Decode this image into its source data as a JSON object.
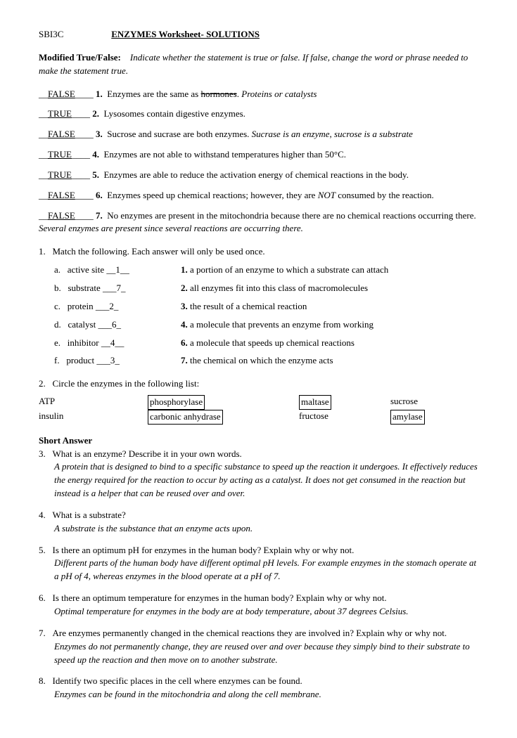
{
  "header": {
    "course": "SBI3C",
    "title": "ENZYMES Worksheet- SOLUTIONS"
  },
  "tf_section": {
    "label": "Modified True/False:",
    "instructions": "Indicate whether the statement is true or false.  If false, change the word or phrase needed to make the statement true."
  },
  "tf": [
    {
      "ans": "FALSE",
      "num": "1.",
      "text": "Enzymes are the same as ",
      "struck": "hormones",
      "after": ".  ",
      "ital": "Proteins or catalysts"
    },
    {
      "ans": "TRUE",
      "num": "2.",
      "text": "Lysosomes contain digestive enzymes."
    },
    {
      "ans": "FALSE",
      "num": "3.",
      "text": "Sucrose and sucrase are both enzymes. ",
      "ital": "Sucrase is an enzyme, sucrose is a substrate"
    },
    {
      "ans": "TRUE",
      "num": "4.",
      "text": "Enzymes are not able to withstand temperatures higher than 50°C."
    },
    {
      "ans": "TRUE",
      "num": "5.",
      "text": "Enzymes are able to reduce the activation energy of chemical reactions in the body."
    },
    {
      "ans": "FALSE",
      "num": "6.",
      "text_pre": "Enzymes speed up chemical reactions; however, they are ",
      "not": "NOT",
      "text_post": " consumed by the reaction."
    },
    {
      "ans": "FALSE",
      "num": "7.",
      "text": "No enzymes are present in the mitochondria because there are no chemical reactions occurring there.  ",
      "ital": "Several enzymes are present since several reactions are occurring there."
    }
  ],
  "match": {
    "intro_num": "1.",
    "intro": "Match the following.  Each answer will only be used once.",
    "rows": [
      {
        "letter": "a.",
        "term": "active site",
        "blank": "__1__",
        "defnum": "1.",
        "def": "a portion of an enzyme to which a substrate can attach"
      },
      {
        "letter": "b.",
        "term": "substrate",
        "blank": "___7_",
        "defnum": "2.",
        "def": "all enzymes fit into this class of macromolecules"
      },
      {
        "letter": "c.",
        "term": "protein",
        "blank": "___2_",
        "defnum": "3.",
        "def": "the result of a chemical reaction"
      },
      {
        "letter": "d.",
        "term": "catalyst",
        "blank": "___6_",
        "defnum": "4.",
        "def": "a molecule that prevents an enzyme from working"
      },
      {
        "letter": "e.",
        "term": "inhibitor",
        "blank": "__4__",
        "defnum": "6.",
        "def": "a molecule that speeds up chemical reactions"
      },
      {
        "letter": "f.",
        "term": "product",
        "blank": "___3_",
        "defnum": "7.",
        "def": "the chemical on which the enzyme acts"
      }
    ]
  },
  "circle": {
    "intro_num": "2.",
    "intro": "Circle the enzymes in the following list:",
    "r1": {
      "a": "ATP",
      "b": "phosphorylase",
      "c": "maltase",
      "d": "sucrose"
    },
    "r2": {
      "a": "insulin",
      "b": "carbonic anhydrase",
      "c": "fructose",
      "d": "amylase"
    }
  },
  "short_label": "Short Answer",
  "sa": [
    {
      "num": "3.",
      "q": "What is an enzyme?  Describe it in your own words.",
      "a": "A protein that is designed to bind to a specific substance to speed up the reaction it undergoes.  It effectively reduces the energy required for the reaction to occur by acting as a catalyst.  It does not get consumed in the reaction but instead is a helper that can be reused over and over."
    },
    {
      "num": "4.",
      "q": "What is a substrate?",
      "a": "A substrate is the substance that an enzyme acts upon."
    },
    {
      "num": "5.",
      "q": "Is there an optimum pH for enzymes in the human body?  Explain why or why not.",
      "a": "Different parts of the human body have different optimal pH levels.  For example enzymes in the stomach operate at a pH of 4, whereas enzymes in the blood operate at a pH of 7."
    },
    {
      "num": "6.",
      "q": "Is there an optimum temperature for enzymes in the human body?  Explain why or why not.",
      "a": "Optimal temperature for enzymes in the body are at body temperature, about 37 degrees Celsius."
    },
    {
      "num": "7.",
      "q": "Are enzymes permanently changed in the chemical reactions they are involved in?  Explain why or why not.",
      "a": "Enzymes do not permanently change, they are reused over and over because they simply bind to their substrate to speed up the reaction and then move on to another substrate."
    },
    {
      "num": "8.",
      "q": "Identify two specific places in the cell where enzymes can be found.",
      "a": "Enzymes can be found in the mitochondria and along the cell membrane."
    }
  ]
}
